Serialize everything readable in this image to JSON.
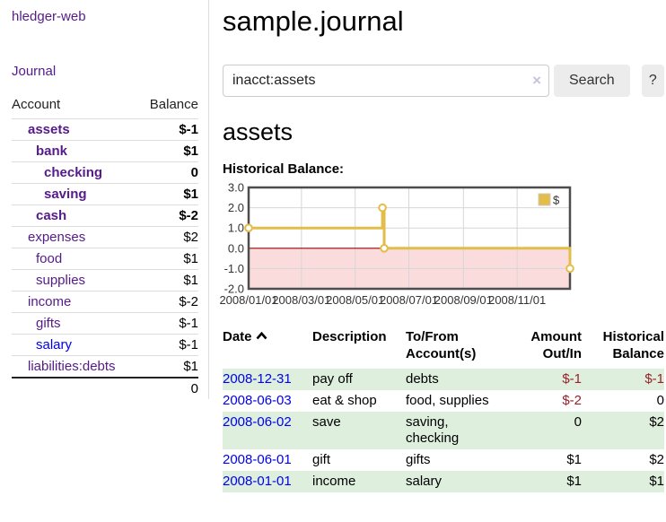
{
  "app": {
    "brand": "hledger-web",
    "nav_journal": "Journal"
  },
  "header": {
    "title": "sample.journal"
  },
  "search": {
    "query": "inacct:assets",
    "clear_icon": "×",
    "button": "Search",
    "help_button": "?"
  },
  "account_page": {
    "heading": "assets",
    "chart_label": "Historical Balance:"
  },
  "sidebar": {
    "header": {
      "account": "Account",
      "balance": "Balance"
    },
    "accounts": [
      {
        "name": "assets",
        "depth": 1,
        "balance": "$-1",
        "bold": true,
        "neg": "strong",
        "link": "purple"
      },
      {
        "name": "bank",
        "depth": 2,
        "balance": "$1",
        "bold": true,
        "neg": "none",
        "link": "purple"
      },
      {
        "name": "checking",
        "depth": 3,
        "balance": "0",
        "bold": true,
        "neg": "none",
        "link": "purple"
      },
      {
        "name": "saving",
        "depth": 3,
        "balance": "$1",
        "bold": true,
        "neg": "none",
        "link": "purple"
      },
      {
        "name": "cash",
        "depth": 2,
        "balance": "$-2",
        "bold": true,
        "neg": "strong",
        "link": "purple"
      },
      {
        "name": "expenses",
        "depth": 1,
        "balance": "$2",
        "bold": false,
        "neg": "none",
        "link": "purple"
      },
      {
        "name": "food",
        "depth": 2,
        "balance": "$1",
        "bold": false,
        "neg": "none",
        "link": "purple"
      },
      {
        "name": "supplies",
        "depth": 2,
        "balance": "$1",
        "bold": false,
        "neg": "none",
        "link": "purple"
      },
      {
        "name": "income",
        "depth": 1,
        "balance": "$-2",
        "bold": false,
        "neg": "soft",
        "link": "purple"
      },
      {
        "name": "gifts",
        "depth": 2,
        "balance": "$-1",
        "bold": false,
        "neg": "soft",
        "link": "purple"
      },
      {
        "name": "salary",
        "depth": 2,
        "balance": "$-1",
        "bold": false,
        "neg": "soft",
        "link": "blue"
      },
      {
        "name": "liabilities:debts",
        "depth": 1,
        "balance": "$1",
        "bold": false,
        "neg": "none",
        "link": "purple"
      }
    ],
    "total": "0"
  },
  "chart_data": {
    "type": "line",
    "step": true,
    "legend": "$",
    "series": [
      {
        "name": "$",
        "color": "#e3bd4a",
        "points": [
          [
            "2008-01-01",
            1
          ],
          [
            "2008-06-01",
            2
          ],
          [
            "2008-06-03",
            0
          ],
          [
            "2008-12-31",
            -1
          ]
        ]
      }
    ],
    "ylim": [
      -2,
      3
    ],
    "yticks": [
      "3.0",
      "2.0",
      "1.0",
      "0.0",
      "-1.0",
      "-2.0"
    ],
    "xticks": [
      "2008/01/01",
      "2008/03/01",
      "2008/05/01",
      "2008/07/01",
      "2008/09/01",
      "2008/11/01"
    ],
    "xrange": [
      "2008-01-01",
      "2008-12-31"
    ],
    "grid": true,
    "legend_position": "top-right",
    "negative_region_color": "#fbdcdc",
    "zero_line_color": "#990000",
    "border_color": "#4d4d4d",
    "grid_color": "#d6d6d6"
  },
  "table": {
    "sort": {
      "column": "Date",
      "direction": "ascending"
    },
    "headers": [
      "Date",
      "Description",
      "To/From\nAccount(s)",
      "Amount\nOut/In",
      "Historical\nBalance"
    ],
    "rows": [
      {
        "date": "2008-12-31",
        "description": "pay off",
        "accounts": "debts",
        "amount": "$-1",
        "amount_neg": true,
        "balance": "$-1",
        "balance_neg": true
      },
      {
        "date": "2008-06-03",
        "description": "eat & shop",
        "accounts": "food, supplies",
        "amount": "$-2",
        "amount_neg": true,
        "balance": "0",
        "balance_neg": false
      },
      {
        "date": "2008-06-02",
        "description": "save",
        "accounts": "saving,\nchecking",
        "amount": "0",
        "amount_neg": false,
        "balance": "$2",
        "balance_neg": false
      },
      {
        "date": "2008-06-01",
        "description": "gift",
        "accounts": "gifts",
        "amount": "$1",
        "amount_neg": false,
        "balance": "$2",
        "balance_neg": false
      },
      {
        "date": "2008-01-01",
        "description": "income",
        "accounts": "salary",
        "amount": "$1",
        "amount_neg": false,
        "balance": "$1",
        "balance_neg": false
      }
    ]
  },
  "colors": {
    "link_visited_purple": "#551a8b",
    "link_blue": "#0000ee",
    "negative_strong": "#8f1b26",
    "negative_soft": "#bb6b73",
    "negative_table": "#992028",
    "row_stripe_green": "#deefde",
    "series_gold": "#e3bd4a"
  }
}
